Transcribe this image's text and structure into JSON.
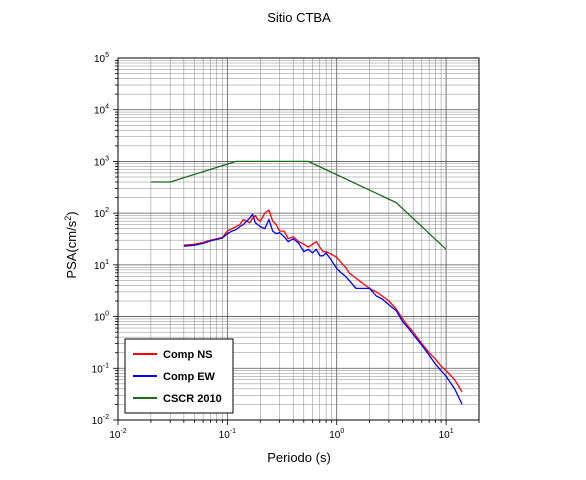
{
  "chart_data": {
    "type": "line",
    "title": "Sitio CTBA",
    "xlabel": "Periodo (s)",
    "ylabel": {
      "base": "PSA(cm/s",
      "sup": "2",
      "close": ")"
    },
    "xscale": "log",
    "yscale": "log",
    "xlim": [
      0.01,
      20
    ],
    "ylim": [
      0.01,
      100000
    ],
    "grid": true,
    "legend_position": "bottom-left",
    "x_ticks": [
      {
        "value": 0.01,
        "base": "10",
        "exp": "-2"
      },
      {
        "value": 0.1,
        "base": "10",
        "exp": "-1"
      },
      {
        "value": 1,
        "base": "10",
        "exp": "0"
      },
      {
        "value": 10,
        "base": "10",
        "exp": "1"
      }
    ],
    "y_ticks": [
      {
        "value": 0.01,
        "base": "10",
        "exp": "-2"
      },
      {
        "value": 0.1,
        "base": "10",
        "exp": "-1"
      },
      {
        "value": 1,
        "base": "10",
        "exp": "0"
      },
      {
        "value": 10,
        "base": "10",
        "exp": "1"
      },
      {
        "value": 100,
        "base": "10",
        "exp": "2"
      },
      {
        "value": 1000,
        "base": "10",
        "exp": "3"
      },
      {
        "value": 10000,
        "base": "10",
        "exp": "4"
      },
      {
        "value": 100000,
        "base": "10",
        "exp": "5"
      }
    ],
    "series": [
      {
        "name": "Comp NS",
        "color": "#ff0000",
        "x": [
          0.04,
          0.05,
          0.06,
          0.07,
          0.08,
          0.09,
          0.1,
          0.11,
          0.12,
          0.13,
          0.14,
          0.15,
          0.16,
          0.17,
          0.18,
          0.19,
          0.2,
          0.22,
          0.24,
          0.26,
          0.28,
          0.3,
          0.33,
          0.36,
          0.4,
          0.45,
          0.5,
          0.55,
          0.6,
          0.65,
          0.7,
          0.75,
          0.8,
          0.9,
          1.0,
          1.1,
          1.2,
          1.3,
          1.5,
          1.7,
          2.0,
          2.3,
          2.6,
          3.0,
          3.5,
          4.0,
          4.5,
          5.0,
          6.0,
          7.0,
          8.0,
          9.0,
          10.0,
          12.0,
          14.0
        ],
        "y": [
          24,
          25,
          27,
          30,
          32,
          34,
          45,
          50,
          55,
          60,
          75,
          70,
          65,
          80,
          90,
          75,
          70,
          100,
          115,
          70,
          60,
          45,
          45,
          32,
          35,
          28,
          25,
          22,
          25,
          28,
          22,
          18,
          18,
          16,
          14,
          11,
          9,
          7,
          5.5,
          4.5,
          3.5,
          3.0,
          2.5,
          2.0,
          1.4,
          0.9,
          0.65,
          0.5,
          0.3,
          0.2,
          0.15,
          0.11,
          0.09,
          0.06,
          0.035
        ]
      },
      {
        "name": "Comp EW",
        "color": "#0000ff",
        "x": [
          0.04,
          0.05,
          0.06,
          0.07,
          0.08,
          0.09,
          0.1,
          0.11,
          0.12,
          0.13,
          0.14,
          0.15,
          0.16,
          0.17,
          0.18,
          0.19,
          0.2,
          0.22,
          0.24,
          0.26,
          0.28,
          0.3,
          0.33,
          0.36,
          0.4,
          0.45,
          0.5,
          0.55,
          0.6,
          0.65,
          0.7,
          0.75,
          0.8,
          0.9,
          1.0,
          1.1,
          1.2,
          1.3,
          1.5,
          1.7,
          2.0,
          2.3,
          2.6,
          3.0,
          3.5,
          4.0,
          4.5,
          5.0,
          6.0,
          7.0,
          8.0,
          9.0,
          10.0,
          12.0,
          14.0
        ],
        "y": [
          23,
          24,
          26,
          29,
          31,
          33,
          40,
          45,
          48,
          55,
          60,
          70,
          80,
          95,
          65,
          60,
          55,
          50,
          75,
          45,
          40,
          42,
          35,
          28,
          32,
          26,
          18,
          20,
          17,
          20,
          15,
          15,
          17,
          12,
          8.5,
          7,
          6,
          5,
          3.5,
          3.5,
          3.5,
          2.5,
          2.2,
          1.7,
          1.3,
          0.8,
          0.6,
          0.45,
          0.28,
          0.18,
          0.12,
          0.09,
          0.07,
          0.04,
          0.02
        ]
      },
      {
        "name": "CSCR 2010",
        "color": "#1e6b1e",
        "x": [
          0.02,
          0.03,
          0.12,
          0.55,
          3.5,
          10.0
        ],
        "y": [
          400,
          400,
          1000,
          1000,
          160,
          20
        ]
      }
    ]
  }
}
